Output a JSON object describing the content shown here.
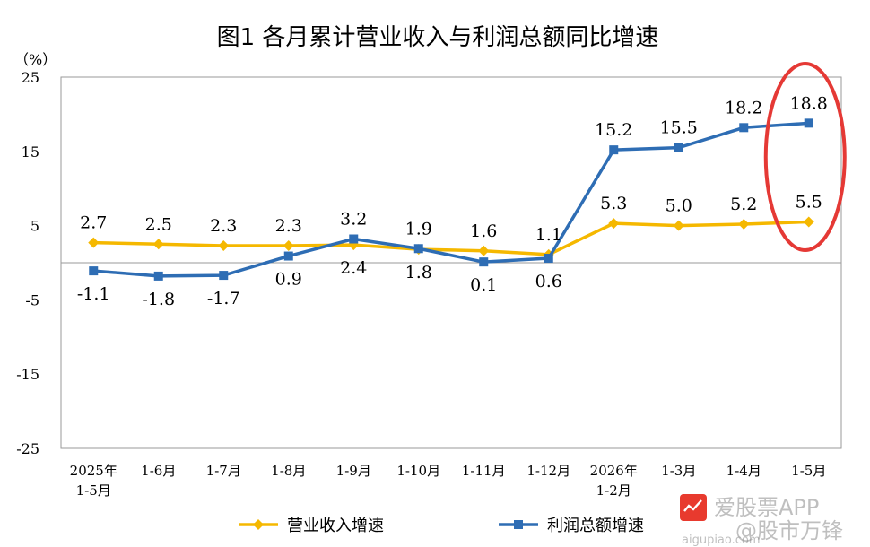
{
  "chart_data": {
    "type": "line",
    "title": "图1  各月累计营业收入与利润总额同比增速",
    "ylabel": "（%）",
    "ylim": [
      -25,
      25
    ],
    "yticks": [
      "25",
      "15",
      "5",
      "-5",
      "-15",
      "-25"
    ],
    "ytick_values": [
      25,
      15,
      5,
      -5,
      -15,
      -25
    ],
    "categories": [
      [
        "2025年",
        "1-5月"
      ],
      [
        "1-6月"
      ],
      [
        "1-7月"
      ],
      [
        "1-8月"
      ],
      [
        "1-9月"
      ],
      [
        "1-10月"
      ],
      [
        "1-11月"
      ],
      [
        "1-12月"
      ],
      [
        "2026年",
        "1-2月"
      ],
      [
        "1-3月"
      ],
      [
        "1-4月"
      ],
      [
        "1-5月"
      ]
    ],
    "series": [
      {
        "name": "营业收入增速",
        "color": "#F5B800",
        "marker": "diamond",
        "values": [
          2.7,
          2.5,
          2.3,
          2.3,
          2.4,
          1.8,
          1.6,
          1.1,
          5.3,
          5.0,
          5.2,
          5.5
        ],
        "labels": [
          "2.7",
          "2.5",
          "2.3",
          "2.3",
          "2.4",
          "1.8",
          "1.6",
          "1.1",
          "5.3",
          "5.0",
          "5.2",
          "5.5"
        ],
        "label_pos": [
          "above",
          "above",
          "above",
          "above",
          "below",
          "below",
          "above",
          "above",
          "above",
          "above",
          "above",
          "above"
        ]
      },
      {
        "name": "利润总额增速",
        "color": "#2E6DB4",
        "marker": "square",
        "values": [
          -1.1,
          -1.8,
          -1.7,
          0.9,
          3.2,
          1.9,
          0.1,
          0.6,
          15.2,
          15.5,
          18.2,
          18.8
        ],
        "labels": [
          "-1.1",
          "-1.8",
          "-1.7",
          "0.9",
          "3.2",
          "1.9",
          "0.1",
          "0.6",
          "15.2",
          "15.5",
          "18.2",
          "18.8"
        ],
        "label_pos": [
          "below",
          "below",
          "below",
          "below",
          "above",
          "above",
          "below",
          "below",
          "above",
          "above",
          "above",
          "above"
        ]
      }
    ],
    "legend_position": "bottom",
    "annotation": {
      "type": "ellipse",
      "color": "#E53935",
      "target": "1-5月"
    },
    "watermark": [
      "爱股票APP",
      "@股市万锋",
      "aigupiao.com"
    ]
  }
}
